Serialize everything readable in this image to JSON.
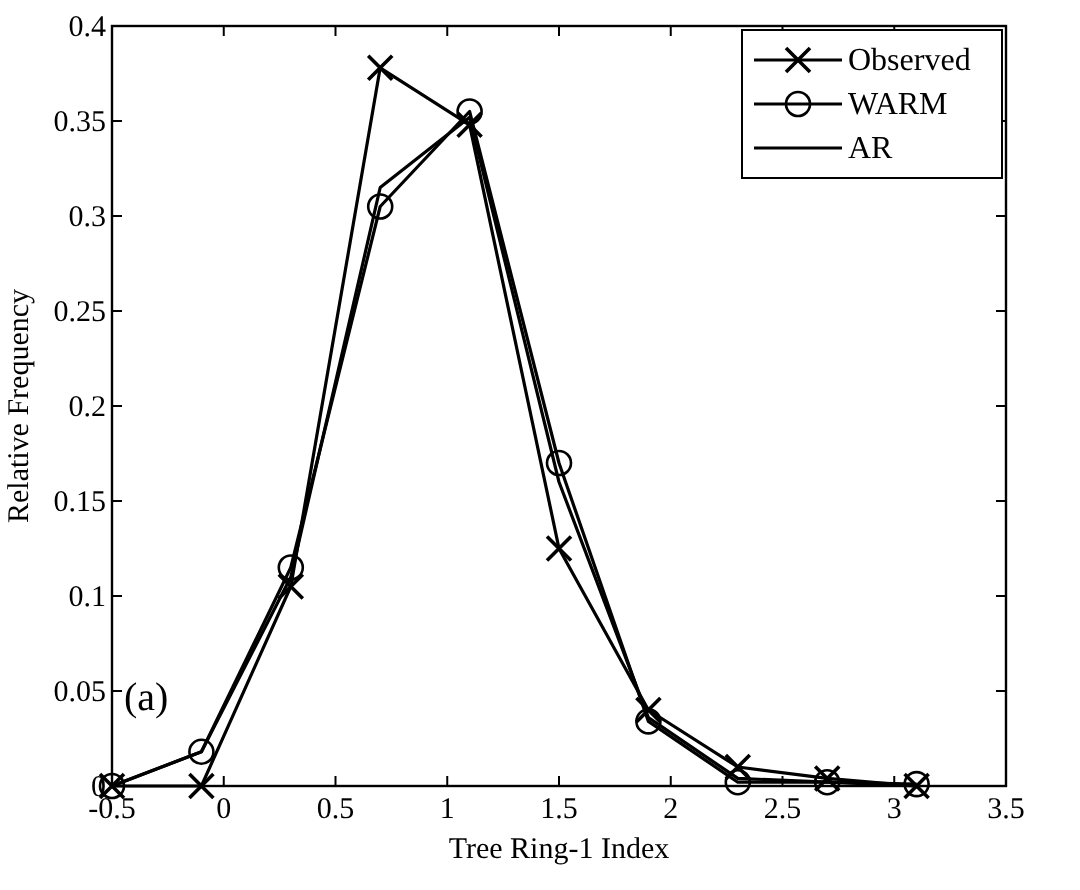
{
  "chart_data": {
    "type": "line",
    "xlabel": "Tree Ring-1 Index",
    "ylabel": "Relative Frequency",
    "x": [
      -0.5,
      -0.1,
      0.3,
      0.7,
      1.1,
      1.5,
      1.9,
      2.3,
      2.7,
      3.1
    ],
    "series": [
      {
        "name": "Observed",
        "color": "#000000",
        "marker": "cross",
        "values": [
          0,
          0,
          0.105,
          0.378,
          0.348,
          0.125,
          0.04,
          0.01,
          0.004,
          0
        ]
      },
      {
        "name": "WARM",
        "color": "#000000",
        "marker": "circle",
        "values": [
          0,
          0.018,
          0.115,
          0.305,
          0.355,
          0.17,
          0.034,
          0.002,
          0.002,
          0.001
        ]
      },
      {
        "name": "AR",
        "color": "#000000",
        "marker": "none",
        "values": [
          0,
          0.018,
          0.11,
          0.315,
          0.352,
          0.16,
          0.036,
          0.004,
          0.002,
          0
        ]
      }
    ],
    "xlim": [
      -0.5,
      3.5
    ],
    "xticks": [
      -0.5,
      0,
      0.5,
      1,
      1.5,
      2,
      2.5,
      3,
      3.5
    ],
    "ylim": [
      0,
      0.4
    ],
    "yticks": [
      0,
      0.05,
      0.1,
      0.15,
      0.2,
      0.25,
      0.3,
      0.35,
      0.4
    ],
    "annotations": [
      "(a)"
    ],
    "legend": "top right",
    "grid": false
  }
}
